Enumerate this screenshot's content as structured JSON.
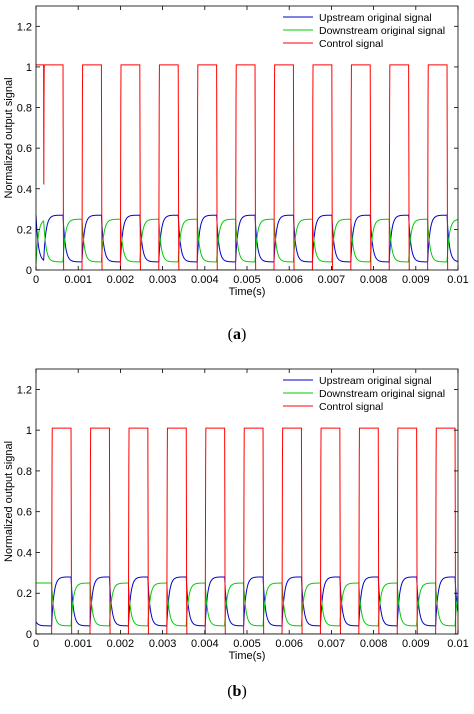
{
  "panels": {
    "a": {
      "caption_open": "(",
      "caption_letter": "a",
      "caption_close": ")"
    },
    "b": {
      "caption_open": "(",
      "caption_letter": "b",
      "caption_close": ")"
    }
  },
  "chart_data": [
    {
      "type": "line",
      "panel": "a",
      "xlabel": "Time(s)",
      "ylabel": "Normalized output signal",
      "xlim": [
        0,
        0.01
      ],
      "ylim": [
        0,
        1.3
      ],
      "xticks": [
        0,
        0.001,
        0.002,
        0.003,
        0.004,
        0.005,
        0.006,
        0.007,
        0.008,
        0.009,
        0.01
      ],
      "xtick_labels": [
        "0",
        "0.001",
        "0.002",
        "0.003",
        "0.004",
        "0.005",
        "0.006",
        "0.007",
        "0.008",
        "0.009",
        "0.01"
      ],
      "yticks": [
        0,
        0.2,
        0.4,
        0.6,
        0.8,
        1,
        1.2
      ],
      "ytick_labels": [
        "0",
        "0.2",
        "0.4",
        "0.6",
        "0.8",
        "1",
        "1.2"
      ],
      "grid": false,
      "legend_position": "top-right",
      "period": 0.00091,
      "pulse_rising_edges": [
        0.00018,
        0.00109,
        0.002,
        0.00291,
        0.00382,
        0.00473,
        0.00564,
        0.00655,
        0.00746,
        0.00837,
        0.00928
      ],
      "pulse_width": 0.00046,
      "series": [
        {
          "name": "Upstream original signal",
          "color": "#0000cc",
          "low": 0.04,
          "high": 0.27,
          "initial": 0.27
        },
        {
          "name": "Downstream original signal",
          "color": "#00cc00",
          "low": 0.04,
          "high": 0.25,
          "initial": 0.03
        },
        {
          "name": "Control signal",
          "color": "#ff0000",
          "low": 0.0,
          "high": 1.01,
          "initial": 1.01
        }
      ]
    },
    {
      "type": "line",
      "panel": "b",
      "xlabel": "Time(s)",
      "ylabel": "Normalized output signal",
      "xlim": [
        0,
        0.01
      ],
      "ylim": [
        0,
        1.3
      ],
      "xticks": [
        0,
        0.001,
        0.002,
        0.003,
        0.004,
        0.005,
        0.006,
        0.007,
        0.008,
        0.009,
        0.01
      ],
      "xtick_labels": [
        "0",
        "0.001",
        "0.002",
        "0.003",
        "0.004",
        "0.005",
        "0.006",
        "0.007",
        "0.008",
        "0.009",
        "0.01"
      ],
      "yticks": [
        0,
        0.2,
        0.4,
        0.6,
        0.8,
        1,
        1.2
      ],
      "ytick_labels": [
        "0",
        "0.2",
        "0.4",
        "0.6",
        "0.8",
        "1",
        "1.2"
      ],
      "grid": false,
      "legend_position": "top-right",
      "period": 0.00091,
      "pulse_rising_edges": [
        0.00037,
        0.00128,
        0.00219,
        0.0031,
        0.00401,
        0.00492,
        0.00583,
        0.00674,
        0.00765,
        0.00856,
        0.00947
      ],
      "pulse_width": 0.00046,
      "series": [
        {
          "name": "Upstream original signal",
          "color": "#0000cc",
          "low": 0.04,
          "high": 0.28,
          "initial": 0.06
        },
        {
          "name": "Downstream original signal",
          "color": "#00cc00",
          "low": 0.04,
          "high": 0.25,
          "initial": 0.25
        },
        {
          "name": "Control signal",
          "color": "#ff0000",
          "low": 0.0,
          "high": 1.01,
          "initial": 0.0
        }
      ]
    }
  ]
}
